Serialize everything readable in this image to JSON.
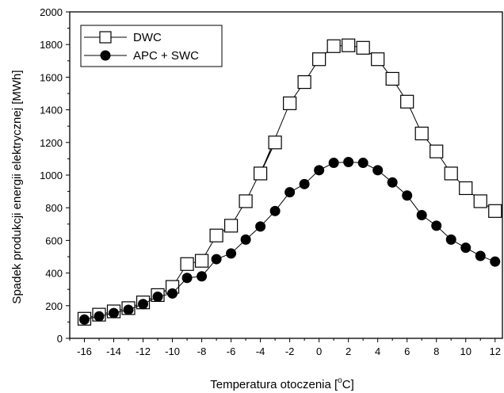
{
  "chart_data": {
    "type": "line",
    "title": "",
    "xlabel_main": "Temperatura otoczenia [",
    "xlabel_sup": "o",
    "xlabel_tail": "C]",
    "ylabel": "Spadek produkcji energii elektrycznej [MWh]",
    "xlim": [
      -17,
      12.5
    ],
    "ylim": [
      0,
      2000
    ],
    "xticks": [
      -16,
      -14,
      -12,
      -10,
      -8,
      -6,
      -4,
      -2,
      0,
      2,
      4,
      6,
      8,
      10,
      12
    ],
    "yticks": [
      0,
      200,
      400,
      600,
      800,
      1000,
      1200,
      1400,
      1600,
      1800,
      2000
    ],
    "grid": false,
    "legend_position": "top-left",
    "series": [
      {
        "name": "DWC",
        "marker": "open-square",
        "x": [
          -16,
          -15,
          -14,
          -13,
          -12,
          -11,
          -10,
          -9,
          -8,
          -7,
          -6,
          -5,
          -3,
          -4,
          -2,
          -1,
          0,
          1,
          2,
          3,
          4,
          5,
          6,
          7,
          8,
          9,
          10,
          11,
          12
        ],
        "y": [
          120,
          145,
          165,
          185,
          220,
          265,
          315,
          455,
          475,
          630,
          690,
          840,
          1200,
          1010,
          1440,
          1570,
          1710,
          1790,
          1795,
          1780,
          1710,
          1590,
          1450,
          1255,
          1145,
          1010,
          920,
          840,
          780
        ]
      },
      {
        "name": "APC + SWC",
        "marker": "filled-circle",
        "x": [
          -16,
          -15,
          -14,
          -13,
          -12,
          -11,
          -10,
          -9,
          -8,
          -7,
          -6,
          -5,
          -4,
          -3,
          -2,
          -1,
          0,
          1,
          2,
          3,
          4,
          5,
          6,
          7,
          8,
          9,
          10,
          11,
          12
        ],
        "y": [
          115,
          135,
          155,
          175,
          210,
          255,
          275,
          370,
          380,
          485,
          520,
          605,
          685,
          780,
          895,
          945,
          1030,
          1075,
          1080,
          1075,
          1030,
          955,
          875,
          755,
          690,
          605,
          555,
          505,
          470
        ]
      }
    ]
  }
}
